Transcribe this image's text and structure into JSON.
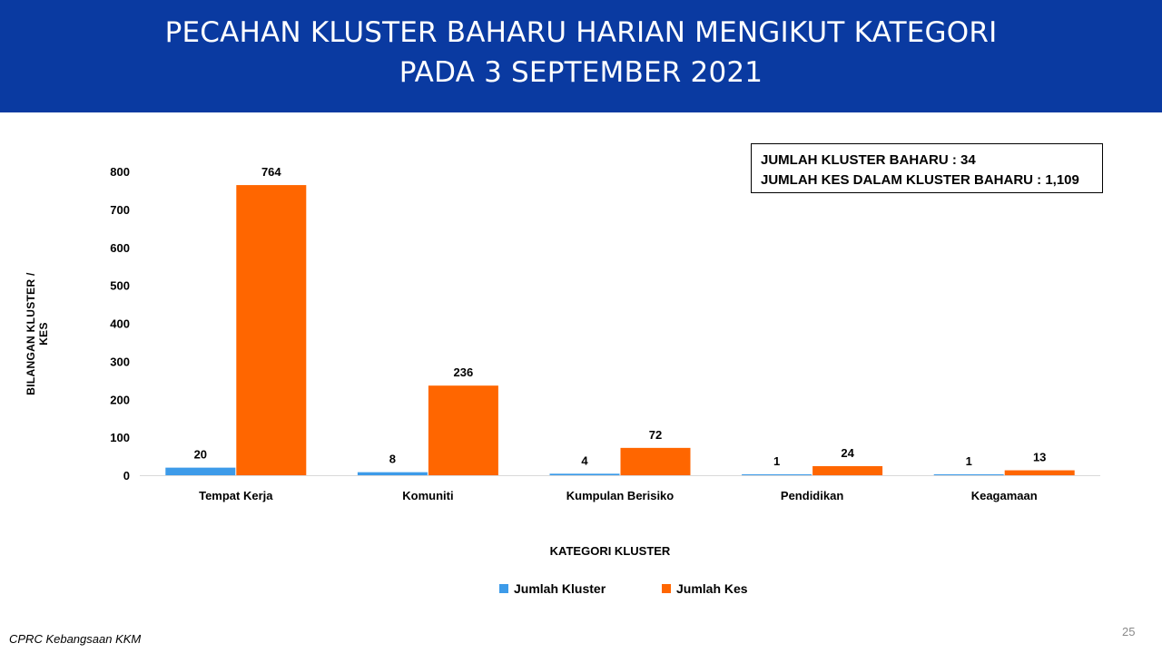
{
  "header": {
    "title_line1": "PECAHAN KLUSTER BAHARU HARIAN MENGIKUT KATEGORI",
    "title_line2": "PADA 3 SEPTEMBER 2021"
  },
  "summary": {
    "line1": "JUMLAH KLUSTER BAHARU : 34",
    "line2": "JUMLAH KES DALAM KLUSTER BAHARU : 1,109"
  },
  "footer": {
    "source": "CPRC Kebangsaan KKM",
    "page_number": "25"
  },
  "colors": {
    "header_bg": "#0a3aa1",
    "series_kluster": "#3d9be9",
    "series_kes": "#ff6600"
  },
  "chart_data": {
    "type": "bar",
    "xlabel": "KATEGORI KLUSTER",
    "ylabel": "BILANGAN KLUSTER / KES",
    "ylim": [
      0,
      800
    ],
    "yticks": [
      0,
      100,
      200,
      300,
      400,
      500,
      600,
      700,
      800
    ],
    "grid": false,
    "legend": "bottom",
    "categories": [
      "Tempat Kerja",
      "Komuniti",
      "Kumpulan Berisiko",
      "Pendidikan",
      "Keagamaan"
    ],
    "series": [
      {
        "name": "Jumlah Kluster",
        "values": [
          20,
          8,
          4,
          1,
          1
        ]
      },
      {
        "name": "Jumlah Kes",
        "values": [
          764,
          236,
          72,
          24,
          13
        ]
      }
    ]
  }
}
